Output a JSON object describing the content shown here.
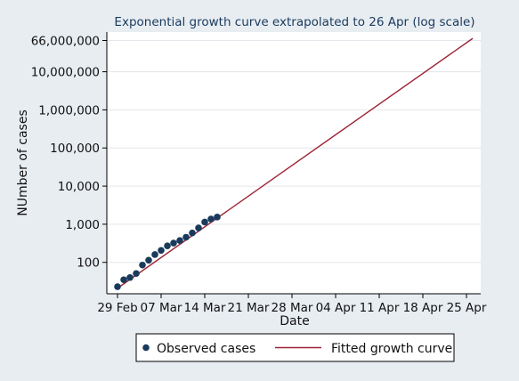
{
  "chart_data": {
    "type": "line",
    "title": "Exponential growth curve extrapolated to 26 Apr  (log scale)",
    "xlabel": "Date",
    "ylabel": "NUmber of cases",
    "y_scale": "log",
    "ylim": [
      15,
      110000000
    ],
    "xlim": [
      "2020-02-29",
      "2020-04-27"
    ],
    "x_ticks": [
      "2020-02-29",
      "2020-03-07",
      "2020-03-14",
      "2020-03-21",
      "2020-03-28",
      "2020-04-04",
      "2020-04-11",
      "2020-04-18",
      "2020-04-25"
    ],
    "x_tick_labels": [
      "29 Feb",
      "07 Mar",
      "14 Mar",
      "21 Mar",
      "28 Mar",
      "04 Apr",
      "11 Apr",
      "18 Apr",
      "25 Apr"
    ],
    "y_ticks": [
      100,
      1000,
      10000,
      100000,
      1000000,
      10000000,
      66000000
    ],
    "y_tick_labels": [
      "100",
      "1,000",
      "10,000",
      "100,000",
      "1,000,000",
      "10,000,000",
      "66,000,000"
    ],
    "grid": true,
    "legend_position": "bottom",
    "series": [
      {
        "name": "Observed cases",
        "kind": "scatter",
        "color": "#1a3a5c",
        "x": [
          "2020-02-29",
          "2020-03-01",
          "2020-03-02",
          "2020-03-03",
          "2020-03-04",
          "2020-03-05",
          "2020-03-06",
          "2020-03-07",
          "2020-03-08",
          "2020-03-09",
          "2020-03-10",
          "2020-03-11",
          "2020-03-12",
          "2020-03-13",
          "2020-03-14",
          "2020-03-15",
          "2020-03-16"
        ],
        "values": [
          23,
          35,
          40,
          51,
          85,
          114,
          160,
          206,
          271,
          321,
          373,
          456,
          590,
          800,
          1140,
          1372,
          1543
        ]
      },
      {
        "name": "Fitted growth curve",
        "kind": "line",
        "color": "#9b2335",
        "x": [
          "2020-02-29",
          "2020-04-26"
        ],
        "values": [
          21,
          75000000
        ]
      }
    ]
  }
}
